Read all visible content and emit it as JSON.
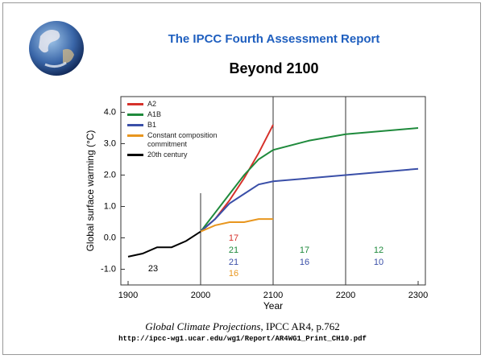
{
  "slide": {
    "title": "The IPCC Fourth Assessment Report",
    "subtitle": "Beyond 2100",
    "caption_title": "Global Climate Projections",
    "caption_rest": ", IPCC AR4, p.762",
    "url": "http://ipcc-wg1.ucar.edu/wg1/Report/AR4WG1_Print_CH10.pdf"
  },
  "chart_data": {
    "type": "line",
    "x_label": "Year",
    "y_label": "Global surface warming (°C)",
    "x": [
      1900,
      1920,
      1940,
      1960,
      1980,
      2000,
      2020,
      2040,
      2060,
      2080,
      2100,
      2150,
      2200,
      2250,
      2300
    ],
    "series": [
      {
        "name": "A2",
        "color": "#d6312b",
        "values": [
          null,
          null,
          null,
          null,
          null,
          0.2,
          0.6,
          1.2,
          1.9,
          2.7,
          3.6,
          null,
          null,
          null,
          null
        ]
      },
      {
        "name": "A1B",
        "color": "#1f8a3c",
        "values": [
          null,
          null,
          null,
          null,
          null,
          0.2,
          0.8,
          1.4,
          2.0,
          2.5,
          2.8,
          3.1,
          3.3,
          3.4,
          3.5
        ]
      },
      {
        "name": "B1",
        "color": "#3a4fa8",
        "values": [
          null,
          null,
          null,
          null,
          null,
          0.2,
          0.6,
          1.1,
          1.4,
          1.7,
          1.8,
          1.9,
          2.0,
          2.1,
          2.2
        ]
      },
      {
        "name": "Constant composition commitment",
        "color": "#e8961e",
        "values": [
          null,
          null,
          null,
          null,
          null,
          0.2,
          0.4,
          0.5,
          0.5,
          0.6,
          0.6,
          null,
          null,
          null,
          null
        ]
      },
      {
        "name": "20th century",
        "color": "#000000",
        "values": [
          -0.6,
          -0.5,
          -0.3,
          -0.3,
          -0.1,
          0.2,
          null,
          null,
          null,
          null,
          null,
          null,
          null,
          null,
          null
        ]
      }
    ],
    "xlim": [
      1890,
      2310
    ],
    "xticks": [
      1900,
      2000,
      2100,
      2200,
      2300
    ],
    "ylim": [
      -1.5,
      4.5
    ],
    "yticks": [
      {
        "value": -1,
        "label": "-1.0"
      },
      {
        "value": 0,
        "label": "0.0"
      },
      {
        "value": 1,
        "label": "1.0"
      },
      {
        "value": 2,
        "label": "2.0"
      },
      {
        "value": 3,
        "label": "3.0"
      },
      {
        "value": 4,
        "label": "4.0"
      }
    ],
    "annotations": [
      {
        "text": "23",
        "color": "#000000"
      },
      {
        "text": "17",
        "color": "#d6312b"
      },
      {
        "text": "21",
        "color": "#1f8a3c"
      },
      {
        "text": "21",
        "color": "#3a4fa8"
      },
      {
        "text": "16",
        "color": "#e8961e"
      },
      {
        "text": "17",
        "color": "#1f8a3c"
      },
      {
        "text": "16",
        "color": "#3a4fa8"
      },
      {
        "text": "12",
        "color": "#1f8a3c"
      },
      {
        "text": "10",
        "color": "#3a4fa8"
      }
    ]
  }
}
